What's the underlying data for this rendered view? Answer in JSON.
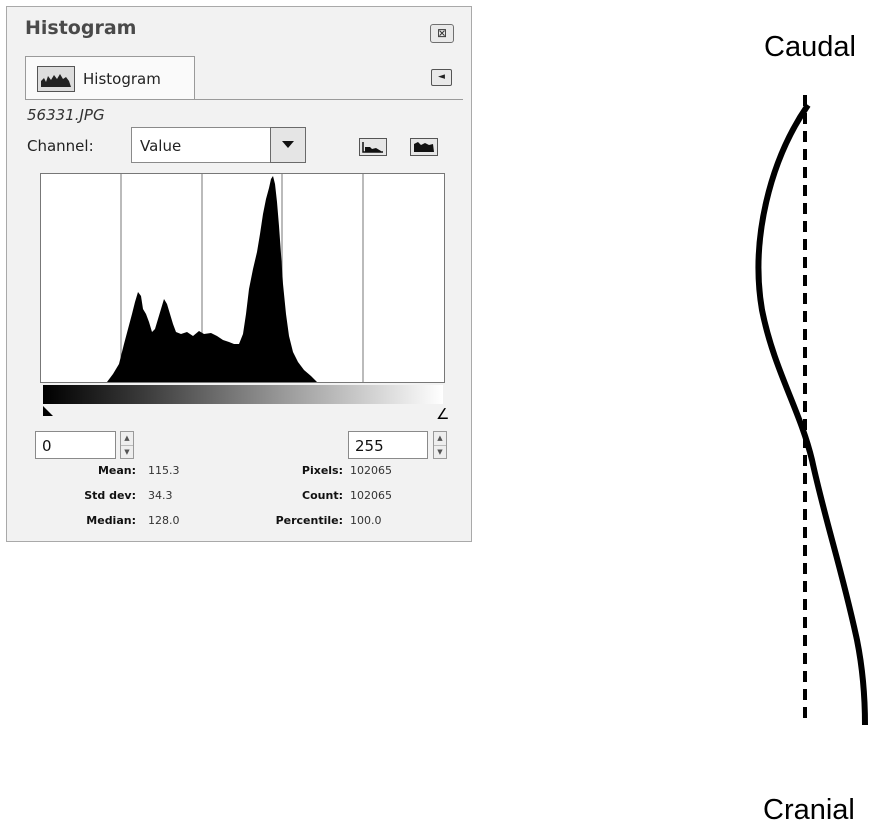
{
  "panel": {
    "title": "Histogram",
    "close_glyph": "⊠",
    "tab_label": "Histogram",
    "menu_glyph": "◄",
    "filename": "56331.JPG",
    "channel_label": "Channel:",
    "channel_value": "Value",
    "range_low": "0",
    "range_high": "255",
    "stats": {
      "mean_label": "Mean:",
      "mean": "115.3",
      "std_label": "Std dev:",
      "std": "34.3",
      "median_label": "Median:",
      "median": "128.0",
      "pixels_label": "Pixels:",
      "pixels": "102065",
      "count_label": "Count:",
      "count": "102065",
      "percentile_label": "Percentile:",
      "percentile": "100.0"
    },
    "icons": {
      "tab": "histogram-icon",
      "close": "close-icon",
      "menu": "tab-menu-icon",
      "linear": "linear-scale-icon",
      "log": "log-scale-icon",
      "dropdown": "chevron-down-icon"
    }
  },
  "diagram": {
    "top_label": "Caudal",
    "bottom_label": "Cranial"
  }
}
